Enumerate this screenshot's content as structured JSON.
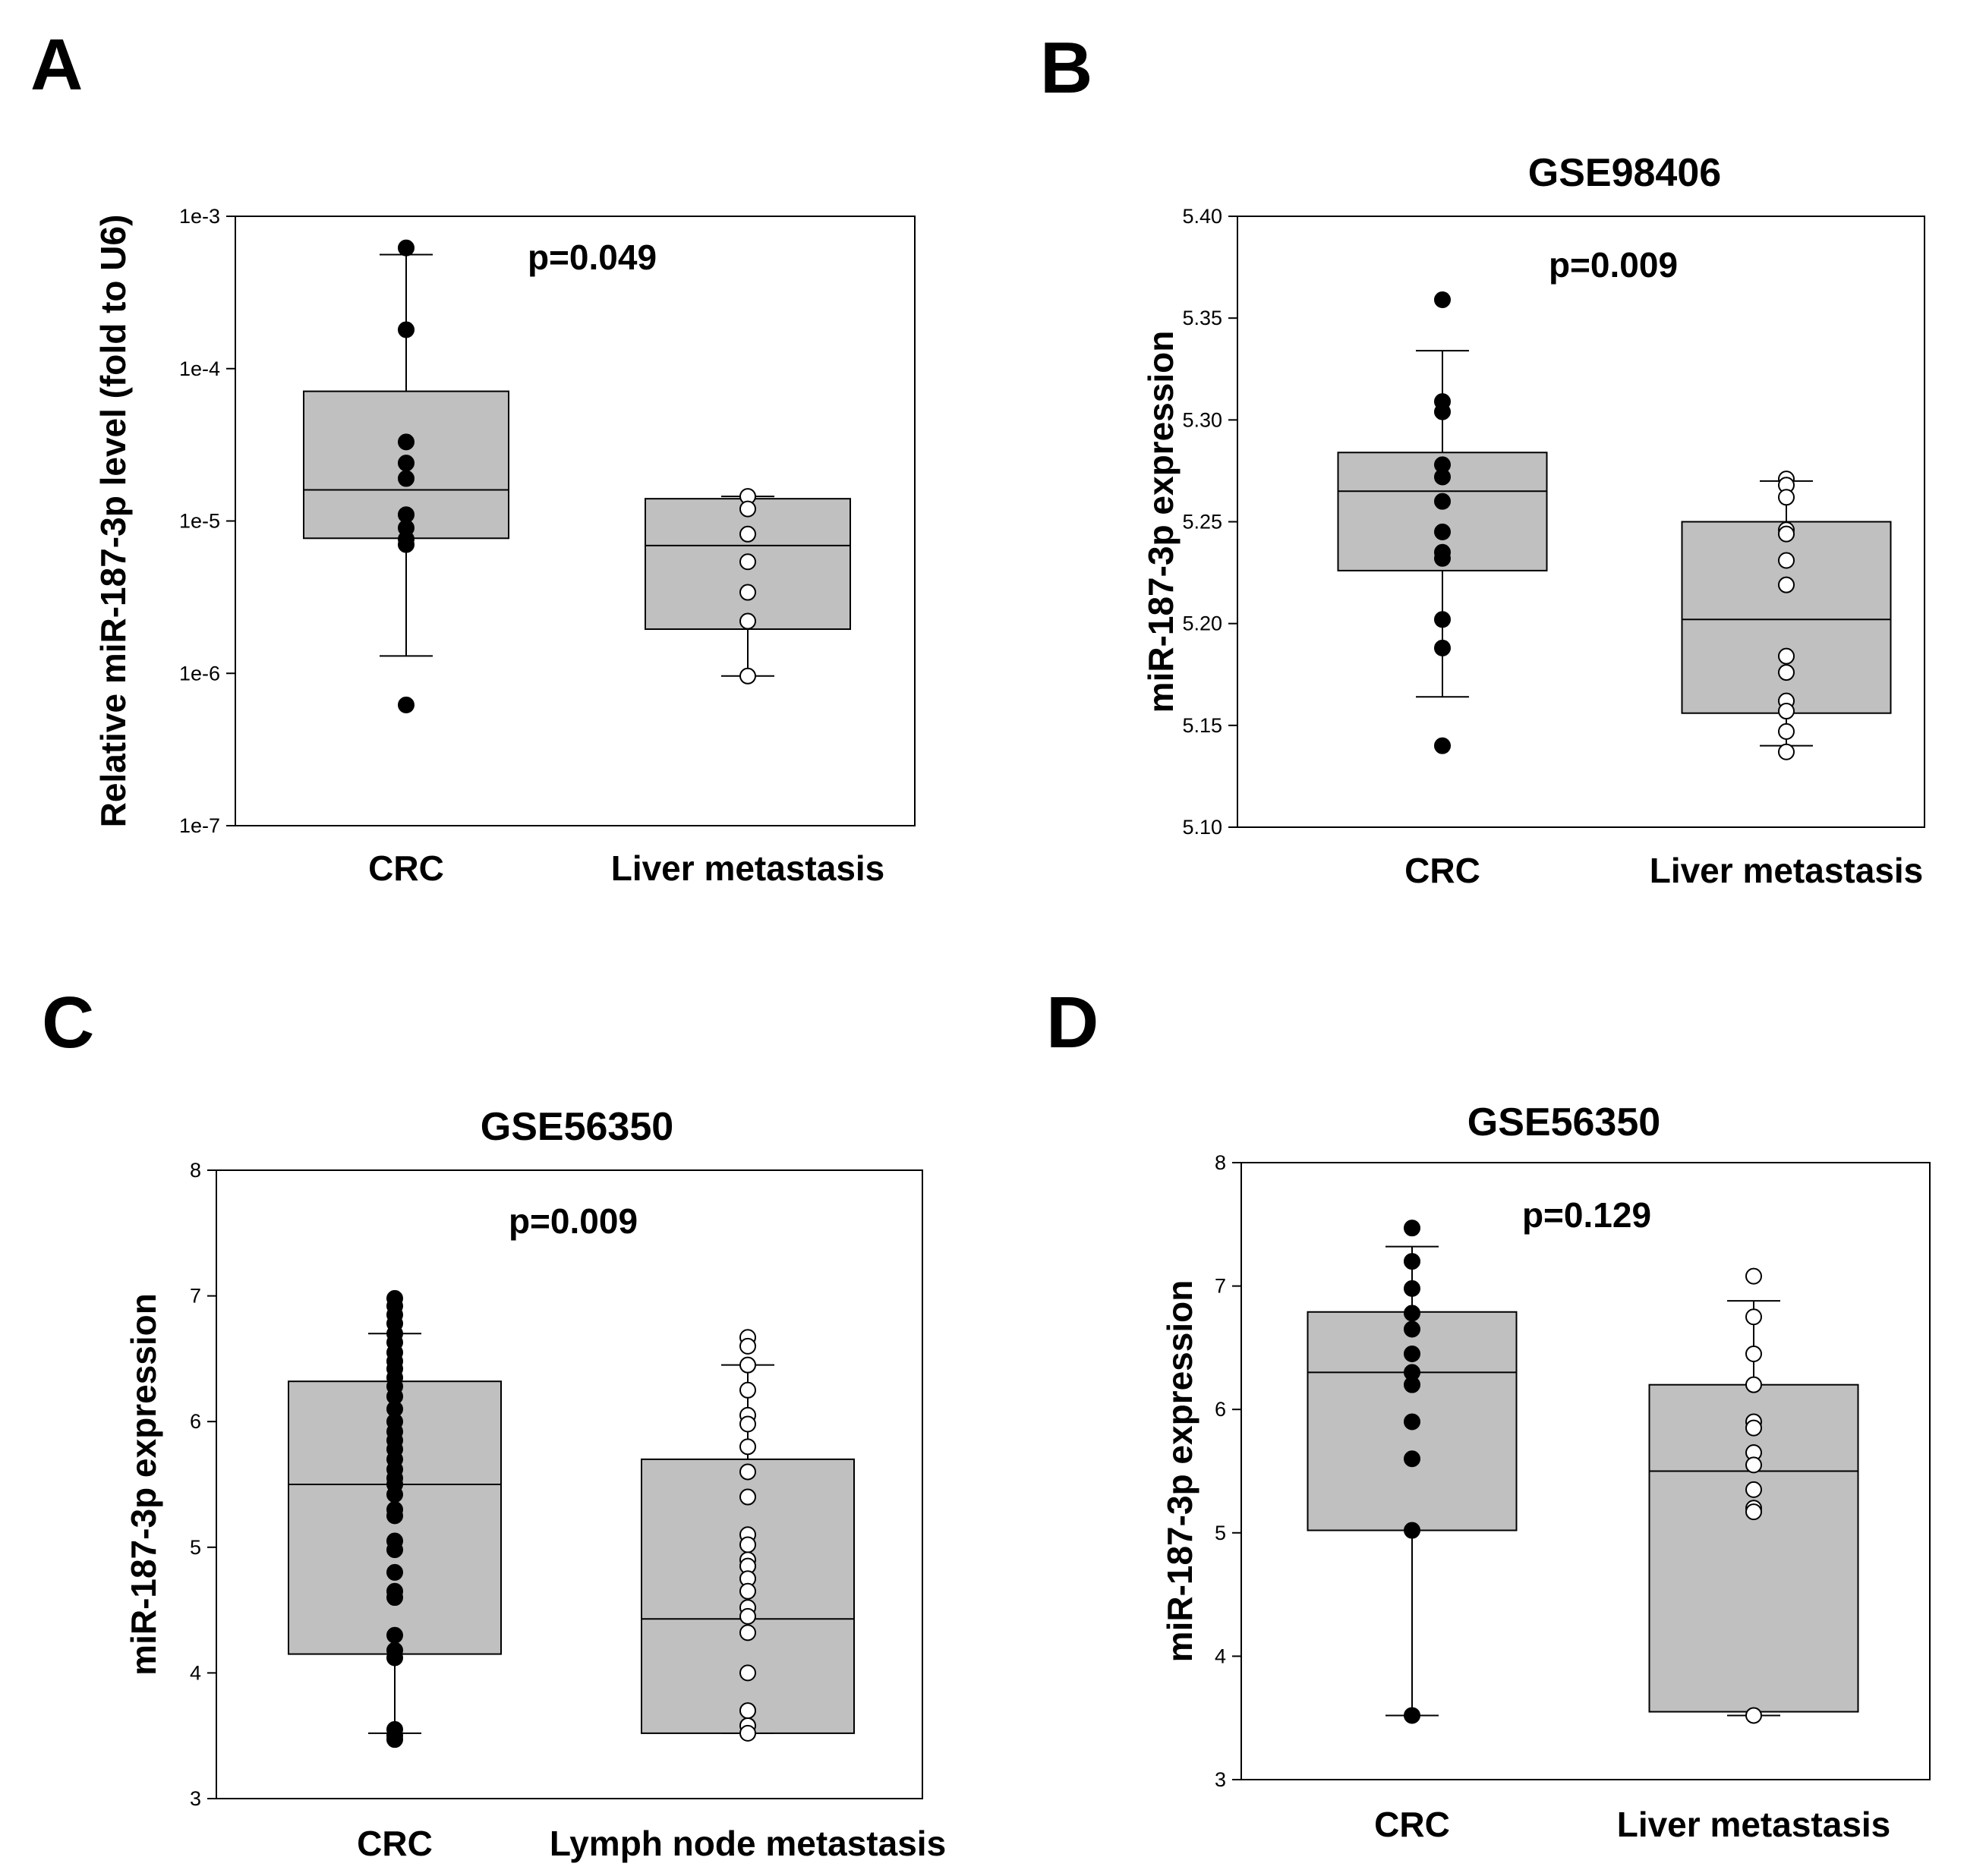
{
  "chart_data": [
    {
      "panel": "A",
      "type": "boxplot",
      "title": "",
      "annotation": "p=0.049",
      "ylabel": "Relative miR-187-3p level (fold to U6)",
      "yscale": "log",
      "ylim": [
        1e-07,
        0.001
      ],
      "yticks": [
        1e-07,
        1e-06,
        1e-05,
        0.0001,
        0.001
      ],
      "ytick_labels": [
        "1e-7",
        "1e-6",
        "1e-5",
        "1e-4",
        "1e-3"
      ],
      "categories": [
        "CRC",
        "Liver metastasis"
      ],
      "boxes": [
        {
          "name": "CRC",
          "whisker_low": 1.3e-06,
          "q1": 7.7e-06,
          "median": 1.6e-05,
          "q3": 7.1e-05,
          "whisker_high": 0.00056,
          "marker": "filled",
          "points": [
            0.00062,
            0.00018,
            3.3e-05,
            2.4e-05,
            1.9e-05,
            1.1e-05,
            9e-06,
            7.6e-06,
            7e-06,
            6.2e-07
          ]
        },
        {
          "name": "Liver metastasis",
          "whisker_low": 9.6e-07,
          "q1": 1.95e-06,
          "median": 6.9e-06,
          "q3": 1.4e-05,
          "whisker_high": 1.45e-05,
          "marker": "open",
          "points": [
            1.45e-05,
            1.2e-05,
            8.2e-06,
            5.4e-06,
            3.4e-06,
            2.2e-06,
            9.6e-07
          ]
        }
      ]
    },
    {
      "panel": "B",
      "type": "boxplot",
      "title": "GSE98406",
      "annotation": "p=0.009",
      "ylabel": "miR-187-3p expression",
      "yscale": "linear",
      "ylim": [
        5.1,
        5.4
      ],
      "yticks": [
        5.1,
        5.15,
        5.2,
        5.25,
        5.3,
        5.35,
        5.4
      ],
      "ytick_labels": [
        "5.10",
        "5.15",
        "5.20",
        "5.25",
        "5.30",
        "5.35",
        "5.40"
      ],
      "categories": [
        "CRC",
        "Liver metastasis"
      ],
      "boxes": [
        {
          "name": "CRC",
          "whisker_low": 5.164,
          "q1": 5.226,
          "median": 5.265,
          "q3": 5.284,
          "whisker_high": 5.334,
          "marker": "filled",
          "points": [
            5.359,
            5.309,
            5.304,
            5.278,
            5.272,
            5.26,
            5.245,
            5.235,
            5.232,
            5.202,
            5.188,
            5.14
          ]
        },
        {
          "name": "Liver metastasis",
          "whisker_low": 5.14,
          "q1": 5.156,
          "median": 5.202,
          "q3": 5.25,
          "whisker_high": 5.27,
          "marker": "open",
          "points": [
            5.271,
            5.268,
            5.262,
            5.246,
            5.244,
            5.231,
            5.219,
            5.184,
            5.176,
            5.162,
            5.157,
            5.147,
            5.137
          ]
        }
      ]
    },
    {
      "panel": "C",
      "type": "boxplot",
      "title": "GSE56350",
      "annotation": "p=0.009",
      "ylabel": "miR-187-3p expression",
      "yscale": "linear",
      "ylim": [
        3,
        8
      ],
      "yticks": [
        3,
        4,
        5,
        6,
        7,
        8
      ],
      "ytick_labels": [
        "3",
        "4",
        "5",
        "6",
        "7",
        "8"
      ],
      "categories": [
        "CRC",
        "Lymph node metastasis"
      ],
      "boxes": [
        {
          "name": "CRC",
          "whisker_low": 3.52,
          "q1": 4.15,
          "median": 5.5,
          "q3": 6.32,
          "whisker_high": 6.7,
          "marker": "filled",
          "points": [
            6.98,
            6.92,
            6.85,
            6.78,
            6.7,
            6.63,
            6.55,
            6.48,
            6.42,
            6.35,
            6.28,
            6.2,
            6.1,
            6.0,
            5.92,
            5.85,
            5.78,
            5.7,
            5.62,
            5.55,
            5.5,
            5.42,
            5.3,
            5.25,
            5.05,
            4.98,
            4.8,
            4.65,
            4.6,
            4.3,
            4.18,
            4.12,
            3.55,
            3.5,
            3.47
          ]
        },
        {
          "name": "Lymph node metastasis",
          "whisker_low": 3.52,
          "q1": 3.52,
          "median": 4.43,
          "q3": 5.7,
          "whisker_high": 6.45,
          "marker": "open",
          "points": [
            6.67,
            6.6,
            6.45,
            6.25,
            6.05,
            5.98,
            5.8,
            5.6,
            5.4,
            5.1,
            5.02,
            4.9,
            4.85,
            4.75,
            4.65,
            4.52,
            4.45,
            4.32,
            4.0,
            3.7,
            3.58,
            3.52
          ]
        }
      ]
    },
    {
      "panel": "D",
      "type": "boxplot",
      "title": "GSE56350",
      "annotation": "p=0.129",
      "ylabel": "miR-187-3p expression",
      "yscale": "linear",
      "ylim": [
        3,
        8
      ],
      "yticks": [
        3,
        4,
        5,
        6,
        7,
        8
      ],
      "ytick_labels": [
        "3",
        "4",
        "5",
        "6",
        "7",
        "8"
      ],
      "categories": [
        "CRC",
        "Liver metastasis"
      ],
      "boxes": [
        {
          "name": "CRC",
          "whisker_low": 3.52,
          "q1": 5.02,
          "median": 6.3,
          "q3": 6.79,
          "whisker_high": 7.32,
          "marker": "filled",
          "points": [
            7.47,
            7.2,
            6.98,
            6.78,
            6.65,
            6.45,
            6.3,
            6.2,
            5.9,
            5.6,
            5.02,
            3.52
          ]
        },
        {
          "name": "Liver metastasis",
          "whisker_low": 3.52,
          "q1": 3.55,
          "median": 5.5,
          "q3": 6.2,
          "whisker_high": 6.88,
          "marker": "open",
          "points": [
            7.08,
            6.75,
            6.45,
            6.2,
            5.9,
            5.85,
            5.65,
            5.55,
            5.35,
            5.2,
            5.17,
            3.52
          ]
        }
      ]
    }
  ]
}
